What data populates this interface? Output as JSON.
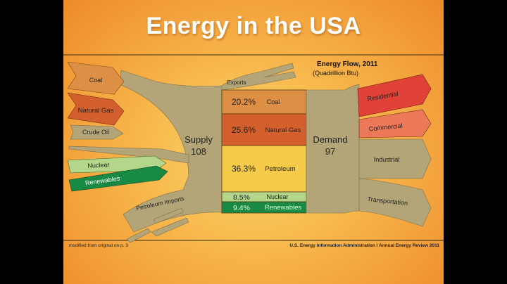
{
  "slide": {
    "title": "Energy in the USA",
    "chart_title": "Energy Flow, 2011",
    "chart_subtitle": "(Quadrillion Btu)",
    "footer_left": "modified from original on p. 3",
    "footer_right": "U.S. Energy Information Administration / Annual Energy Review 2011"
  },
  "flow": {
    "supply_label": "Supply",
    "supply_value": "108",
    "demand_label": "Demand",
    "demand_value": "97",
    "inputs": [
      "Coal",
      "Natural Gas",
      "Crude Oil",
      "Nuclear",
      "Renewables",
      "Petroleum Imports"
    ],
    "exports_label": "Exports",
    "mix": [
      {
        "pct": "20.2%",
        "label": "Coal"
      },
      {
        "pct": "25.6%",
        "label": "Natural Gas"
      },
      {
        "pct": "36.3%",
        "label": "Petroleum"
      },
      {
        "pct": "8.5%",
        "label": "Nuclear"
      },
      {
        "pct": "9.4%",
        "label": "Renewables"
      }
    ],
    "outputs": [
      "Residential",
      "Commercial",
      "Industrial",
      "Transportation"
    ]
  },
  "colors": {
    "flow": "#b3a577",
    "coal": "#dc8f45",
    "natural_gas": "#d25f2c",
    "petroleum": "#f6cb4a",
    "nuclear": "#b2d68a",
    "renewables": "#198a44",
    "residential": "#e04238",
    "commercial": "#ec7a5a"
  }
}
